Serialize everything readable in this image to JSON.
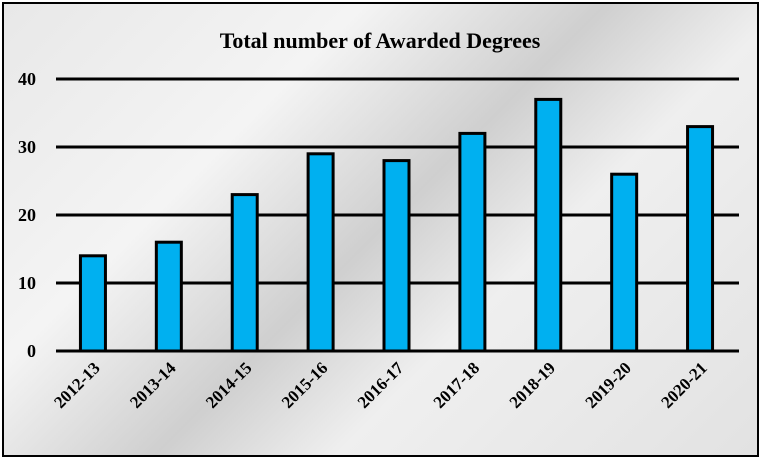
{
  "chart_data": {
    "type": "bar",
    "title": "Total number of Awarded Degrees",
    "categories": [
      "2012-13",
      "2013-14",
      "2014-15",
      "2015-16",
      "2016-17",
      "2017-18",
      "2018-19",
      "2019-20",
      "2020-21"
    ],
    "values": [
      14,
      16,
      23,
      29,
      28,
      32,
      37,
      26,
      33
    ],
    "ylim": [
      0,
      40
    ],
    "yticks": [
      0,
      10,
      20,
      30,
      40
    ],
    "grid": true,
    "bar_color": "#00b0f0",
    "xlabel": "",
    "ylabel": ""
  }
}
